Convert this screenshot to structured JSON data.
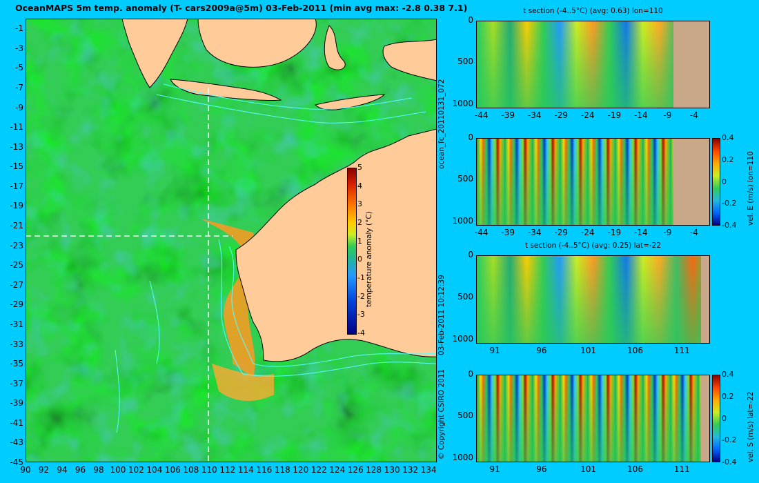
{
  "title": "OceanMAPS 5m temp. anomaly (T- cars2009a@5m) 03-Feb-2011 (min avg max: -2.8 0.38 7.1)",
  "map": {
    "x_ticks": [
      "90",
      "92",
      "94",
      "96",
      "98",
      "100",
      "102",
      "104",
      "106",
      "108",
      "110",
      "112",
      "114",
      "116",
      "118",
      "120",
      "122",
      "124",
      "126",
      "128",
      "130",
      "132",
      "134"
    ],
    "y_ticks": [
      "-1",
      "-3",
      "-5",
      "-7",
      "-9",
      "-11",
      "-13",
      "-15",
      "-17",
      "-19",
      "-21",
      "-23",
      "-25",
      "-27",
      "-29",
      "-31",
      "-33",
      "-35",
      "-37",
      "-39",
      "-41",
      "-43",
      "-45"
    ],
    "crosshair_lon": 110,
    "crosshair_lat": -22,
    "land_color": "#ffcc99",
    "colorbar": {
      "label": "temperature anomaly (°C)",
      "ticks": [
        "5",
        "4",
        "3",
        "2",
        "1",
        "0",
        "-1",
        "-2",
        "-3",
        "-4"
      ]
    }
  },
  "vertical_labels": {
    "model_run": "ocean_fc_20110131_072",
    "timestamp": "03-Feb-2011 10:12:39",
    "copyright": "© Copyright CSIRO 2011"
  },
  "panels": [
    {
      "title": "t section (-4..5°C) (avg: 0.63) lon=110",
      "y_ticks": [
        "0",
        "500",
        "1000"
      ],
      "x_ticks": [
        "-44",
        "-39",
        "-34",
        "-29",
        "-24",
        "-19",
        "-14",
        "-9",
        "-4"
      ],
      "colorbar": null
    },
    {
      "title": "",
      "y_ticks": [
        "0",
        "500",
        "1000"
      ],
      "x_ticks": [
        "-44",
        "-39",
        "-34",
        "-29",
        "-24",
        "-19",
        "-14",
        "-9",
        "-4"
      ],
      "colorbar": {
        "label": "vel. E (m/s) lon=110",
        "ticks": [
          "0.4",
          "0.2",
          "0",
          "-0.2",
          "-0.4"
        ]
      }
    },
    {
      "title": "t section (-4..5°C) (avg: 0.25) lat=-22",
      "y_ticks": [
        "0",
        "500",
        "1000"
      ],
      "x_ticks": [
        "91",
        "96",
        "101",
        "106",
        "111"
      ],
      "colorbar": null
    },
    {
      "title": "",
      "y_ticks": [
        "0",
        "500",
        "1000"
      ],
      "x_ticks": [
        "91",
        "96",
        "101",
        "106",
        "111"
      ],
      "colorbar": {
        "label": "vel. S (m/s) lat=-22",
        "ticks": [
          "0.4",
          "0.2",
          "0",
          "-0.2",
          "-0.4"
        ]
      }
    }
  ],
  "chart_data": [
    {
      "type": "heatmap",
      "title": "OceanMAPS 5m temp. anomaly (T- cars2009a@5m) 03-Feb-2011 (min avg max: -2.8 0.38 7.1)",
      "xlabel": "",
      "ylabel": "",
      "xlim": [
        90,
        135
      ],
      "ylim": [
        -45,
        0
      ],
      "colorbar_label": "temperature anomaly (°C)",
      "color_range": [
        -4,
        5
      ],
      "stats": {
        "min": -2.8,
        "avg": 0.38,
        "max": 7.1
      }
    },
    {
      "type": "heatmap",
      "title": "t section (-4..5°C) (avg: 0.63) lon=110",
      "xlim": [
        -45,
        -1
      ],
      "ylim": [
        1050,
        0
      ],
      "color_range": [
        -4,
        5
      ],
      "avg": 0.63
    },
    {
      "type": "heatmap",
      "title": "",
      "xlim": [
        -45,
        -1
      ],
      "ylim": [
        1050,
        0
      ],
      "colorbar_label": "vel. E (m/s) lon=110",
      "color_range": [
        -0.4,
        0.4
      ]
    },
    {
      "type": "heatmap",
      "title": "t section (-4..5°C) (avg: 0.25) lat=-22",
      "xlim": [
        89,
        114
      ],
      "ylim": [
        1050,
        0
      ],
      "color_range": [
        -4,
        5
      ],
      "avg": 0.25
    },
    {
      "type": "heatmap",
      "title": "",
      "xlim": [
        89,
        114
      ],
      "ylim": [
        1050,
        0
      ],
      "colorbar_label": "vel. S (m/s) lat=-22",
      "color_range": [
        -0.4,
        0.4
      ]
    }
  ]
}
